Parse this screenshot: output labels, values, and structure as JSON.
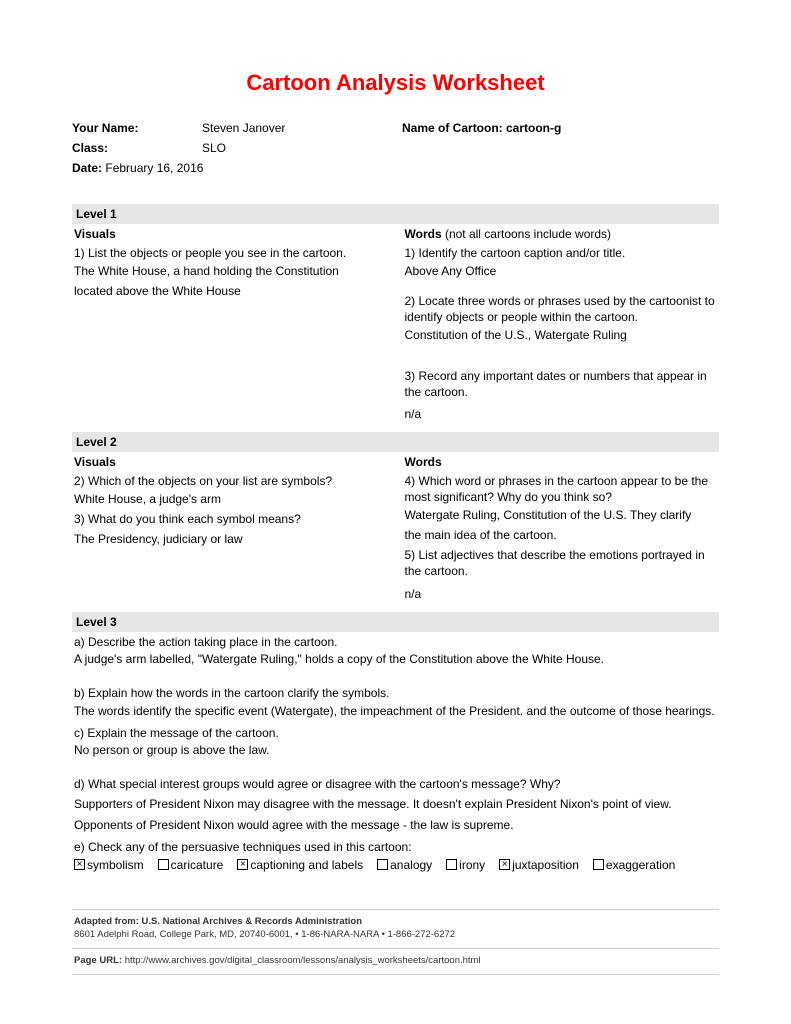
{
  "title": "Cartoon Analysis Worksheet",
  "header": {
    "name_label": "Your Name:",
    "name_value": "Steven Janover",
    "cartoon_label": "Name of Cartoon: cartoon-g",
    "class_label": "Class:",
    "class_value": "SLO",
    "date_label": "Date:",
    "date_value": "February 16, 2016"
  },
  "level1": {
    "bar": "Level 1",
    "left": {
      "heading": "Visuals",
      "q1": "1) List the objects or people you see in the cartoon.",
      "a1a": "The White House, a hand holding the Constitution",
      "a1b": "located above the White House"
    },
    "right": {
      "heading": "Words",
      "heading_note": " (not all cartoons include words)",
      "q1": "1) Identify the cartoon caption and/or title.",
      "a1": "Above Any Office",
      "q2": "2) Locate three words or phrases used by the cartoonist to identify objects or people within the cartoon.",
      "a2": "Constitution of the U.S., Watergate Ruling",
      "q3": "3) Record any important dates or numbers that appear in the cartoon.",
      "a3": "n/a"
    }
  },
  "level2": {
    "bar": "Level 2",
    "left": {
      "heading": "Visuals",
      "q2": "2) Which of the objects on your list are symbols?",
      "a2": "White House, a judge's arm",
      "q3": "3) What do you think each symbol means?",
      "a3": "The Presidency, judiciary or law"
    },
    "right": {
      "heading": "Words",
      "q4": "4) Which word or phrases in the cartoon appear to be the most significant?  Why do you think so?",
      "a4a": "Watergate Ruling, Constitution of the U.S. They clarify",
      "a4b": "the main idea of the cartoon.",
      "q5": "5) List adjectives that describe the emotions portrayed in the cartoon.",
      "a5": "n/a"
    }
  },
  "level3": {
    "bar": "Level 3",
    "qa": {
      "q_a": "a) Describe the action taking place in the cartoon.",
      "a_a": "A judge's arm labelled, \"Watergate Ruling,\" holds a copy of the Constitution above the White House.",
      "q_b": "b) Explain how the words in the cartoon clarify the symbols.",
      "a_b": "The words identify the specific event (Watergate), the impeachment of the President. and the outcome of those hearings.",
      "q_c": "c) Explain the message of the cartoon.",
      "a_c": "No person or group is above the law.",
      "q_d": "d) What special interest groups would agree or disagree with the cartoon's message?  Why?",
      "a_d1": "Supporters of President Nixon may disagree with the message. It doesn't explain President Nixon's point of view.",
      "a_d2": "Opponents of President Nixon would agree with the message - the law is supreme.",
      "q_e": "e) Check any of the persuasive techniques used in this cartoon:"
    },
    "techniques": [
      {
        "label": "symbolism",
        "checked": true
      },
      {
        "label": "caricature",
        "checked": false
      },
      {
        "label": "captioning and labels",
        "checked": true
      },
      {
        "label": "analogy",
        "checked": false
      },
      {
        "label": "irony",
        "checked": false
      },
      {
        "label": "juxtaposition",
        "checked": true
      },
      {
        "label": "exaggeration",
        "checked": false
      }
    ]
  },
  "footer": {
    "adapted": "Adapted from: U.S. National Archives & Records Administration",
    "address": "8601 Adelphi Road, College Park, MD, 20740-6001, • 1-86-NARA-NARA • 1-866-272-6272",
    "url_label": "Page URL:",
    "url": "http://www.archives.gov/digital_classroom/lessons/analysis_worksheets/cartoon.html"
  }
}
